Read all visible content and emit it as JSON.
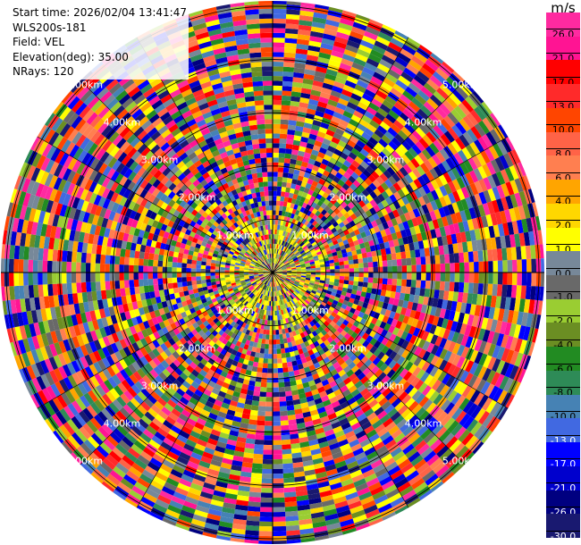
{
  "info": {
    "start_time": "Start time: 2026/02/04 13:41:47",
    "station": "WLS200s-181",
    "field": "Field: VEL",
    "elevation": "Elevation(deg): 35.00",
    "nrays": "NRays: 120"
  },
  "colorbar": {
    "unit": "m/s",
    "ticks": [
      "26.0",
      "21.0",
      "17.0",
      "13.0",
      "10.0",
      "8.0",
      "6.0",
      "4.0",
      "2.0",
      "1.0",
      "0.0",
      "-1.0",
      "-2.0",
      "-4.0",
      "-6.0",
      "-8.0",
      "-10.0",
      "-13.0",
      "-17.0",
      "-21.0",
      "-26.0",
      "-30.0"
    ],
    "colors": [
      "#ff2aa0",
      "#ff1493",
      "#ff0000",
      "#ff2a2a",
      "#ff4500",
      "#ff6347",
      "#ff7f50",
      "#ffa500",
      "#ffd700",
      "#ffff00",
      "#778899",
      "#696969",
      "#9acd32",
      "#6b8e23",
      "#228b22",
      "#2e8b57",
      "#4682b4",
      "#4169e1",
      "#0000ff",
      "#0000cd",
      "#000080",
      "#191970"
    ]
  },
  "chart_data": {
    "type": "heatmap",
    "plot": "PPI (polar)",
    "field": "VEL",
    "units": "m/s",
    "elevation_deg": 35.0,
    "n_rays": 120,
    "range_rings_km": [
      1.0,
      2.0,
      3.0,
      4.0,
      5.0
    ],
    "ring_labels": [
      "1.00km",
      "2.00km",
      "3.00km",
      "4.00km",
      "5.00km"
    ],
    "max_range_km": 5.1,
    "color_levels": [
      -30.0,
      -26.0,
      -21.0,
      -17.0,
      -13.0,
      -10.0,
      -8.0,
      -6.0,
      -4.0,
      -2.0,
      -1.0,
      0.0,
      1.0,
      2.0,
      4.0,
      6.0,
      8.0,
      10.0,
      13.0,
      17.0,
      21.0,
      26.0
    ]
  }
}
